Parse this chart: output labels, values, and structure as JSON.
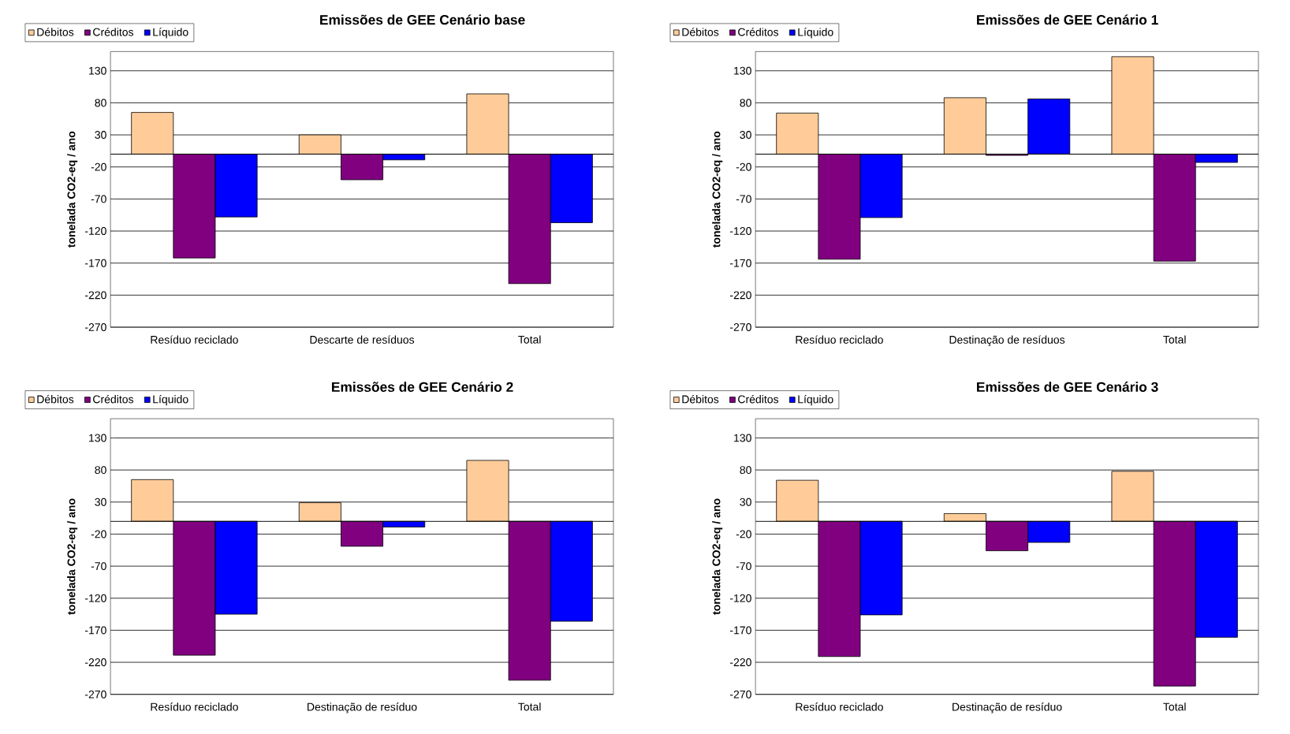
{
  "chart_data": [
    {
      "type": "bar",
      "title": "Emissões de GEE Cenário base",
      "ylabel": "tonelada CO2-eq / ano",
      "categories": [
        "Resíduo reciclado",
        "Descarte de resíduos",
        "Total"
      ],
      "series": [
        {
          "name": "Débitos",
          "color": "#ffcc99",
          "values": [
            65,
            30,
            94
          ]
        },
        {
          "name": "Créditos",
          "color": "#800080",
          "values": [
            -162,
            -40,
            -202
          ]
        },
        {
          "name": "Líquido",
          "color": "#0000ff",
          "values": [
            -98,
            -9,
            -107
          ]
        }
      ],
      "ylim": [
        -270,
        160
      ],
      "yticks": [
        -270,
        -220,
        -170,
        -120,
        -70,
        -20,
        30,
        80,
        130
      ],
      "grid": "y",
      "legend": "top left"
    },
    {
      "type": "bar",
      "title": "Emissões de GEE Cenário 1",
      "ylabel": "tonelada CO2-eq / ano",
      "categories": [
        "Resíduo reciclado",
        "Destinação de resíduos",
        "Total"
      ],
      "series": [
        {
          "name": "Débitos",
          "color": "#ffcc99",
          "values": [
            64,
            88,
            152
          ]
        },
        {
          "name": "Créditos",
          "color": "#800080",
          "values": [
            -164,
            -2,
            -167
          ]
        },
        {
          "name": "Líquido",
          "color": "#0000ff",
          "values": [
            -99,
            86,
            -13
          ]
        }
      ],
      "ylim": [
        -270,
        160
      ],
      "yticks": [
        -270,
        -220,
        -170,
        -120,
        -70,
        -20,
        30,
        80,
        130
      ],
      "grid": "y",
      "legend": "top left"
    },
    {
      "type": "bar",
      "title": "Emissões de GEE Cenário 2",
      "ylabel": "tonelada CO2-eq / ano",
      "categories": [
        "Resíduo reciclado",
        "Destinação de resíduo",
        "Total"
      ],
      "series": [
        {
          "name": "Débitos",
          "color": "#ffcc99",
          "values": [
            65,
            29,
            95
          ]
        },
        {
          "name": "Créditos",
          "color": "#800080",
          "values": [
            -209,
            -39,
            -248
          ]
        },
        {
          "name": "Líquido",
          "color": "#0000ff",
          "values": [
            -145,
            -9,
            -156
          ]
        }
      ],
      "ylim": [
        -270,
        160
      ],
      "yticks": [
        -270,
        -220,
        -170,
        -120,
        -70,
        -20,
        30,
        80,
        130
      ],
      "grid": "y",
      "legend": "top left"
    },
    {
      "type": "bar",
      "title": "Emissões de GEE Cenário 3",
      "ylabel": "tonelada CO2-eq / ano",
      "categories": [
        "Resíduo reciclado",
        "Destinação de resíduo",
        "Total"
      ],
      "series": [
        {
          "name": "Débitos",
          "color": "#ffcc99",
          "values": [
            64,
            12,
            78
          ]
        },
        {
          "name": "Créditos",
          "color": "#800080",
          "values": [
            -211,
            -46,
            -257
          ]
        },
        {
          "name": "Líquido",
          "color": "#0000ff",
          "values": [
            -146,
            -33,
            -181
          ]
        }
      ],
      "ylim": [
        -270,
        160
      ],
      "yticks": [
        -270,
        -220,
        -170,
        -120,
        -70,
        -20,
        30,
        80,
        130
      ],
      "grid": "y",
      "legend": "top left"
    }
  ]
}
